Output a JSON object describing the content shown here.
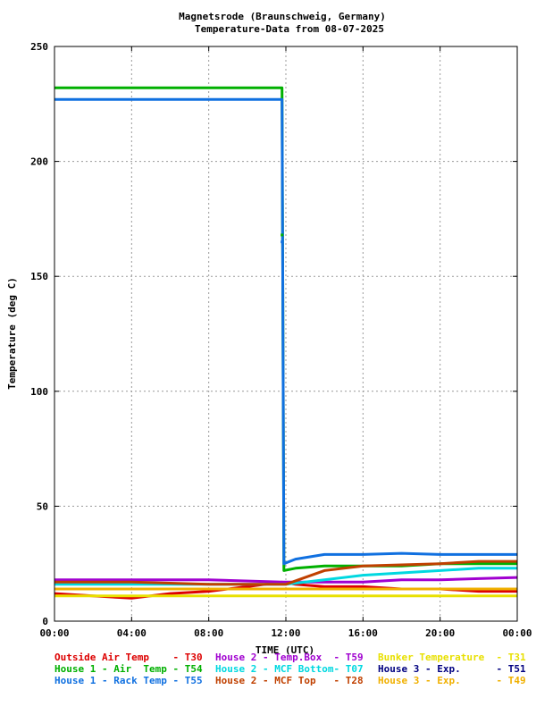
{
  "chart_data": {
    "type": "line",
    "title": "Magnetsrode (Braunschweig, Germany)",
    "subtitle": "Temperature-Data from 08-07-2025",
    "xlabel": "TIME (UTC)",
    "ylabel": "Temperature (deg C)",
    "xlim": [
      0,
      24
    ],
    "ylim": [
      0,
      250
    ],
    "grid": true,
    "xticks": [
      {
        "v": 0,
        "label": "00:00"
      },
      {
        "v": 4,
        "label": "04:00"
      },
      {
        "v": 8,
        "label": "08:00"
      },
      {
        "v": 12,
        "label": "12:00"
      },
      {
        "v": 16,
        "label": "16:00"
      },
      {
        "v": 20,
        "label": "20:00"
      },
      {
        "v": 24,
        "label": "00:00"
      }
    ],
    "yticks": [
      {
        "v": 0,
        "label": "0"
      },
      {
        "v": 50,
        "label": "50"
      },
      {
        "v": 100,
        "label": "100"
      },
      {
        "v": 150,
        "label": "150"
      },
      {
        "v": 200,
        "label": "200"
      },
      {
        "v": 250,
        "label": "250"
      }
    ],
    "series": [
      {
        "name": "Outside Air Temp",
        "code": "T30",
        "color": "#dd0000",
        "x": [
          0,
          2,
          4,
          6,
          8,
          10,
          11.8,
          12.5,
          14,
          16,
          18,
          20,
          22,
          24
        ],
        "y": [
          12,
          11,
          10,
          12,
          13,
          15,
          17,
          16,
          15,
          15,
          14,
          14,
          13,
          13
        ]
      },
      {
        "name": "House 1 - Air  Temp",
        "code": "T54",
        "color": "#00b000",
        "x": [
          0,
          11.8,
          11.9,
          12.5,
          14,
          16,
          18,
          20,
          22,
          24
        ],
        "y": [
          232,
          232,
          22,
          23,
          24,
          24,
          24,
          25,
          25,
          25
        ]
      },
      {
        "name": "House 1 - Rack Temp",
        "code": "T55",
        "color": "#1070e0",
        "x": [
          0,
          11.8,
          11.9,
          12.5,
          14,
          16,
          18,
          20,
          22,
          24
        ],
        "y": [
          227,
          227,
          25,
          27,
          29,
          29,
          29.5,
          29,
          29,
          29
        ]
      },
      {
        "name": "House 2 - Temp.Box",
        "code": "T59",
        "color": "#a000d0",
        "x": [
          0,
          4,
          8,
          11.8,
          12,
          14,
          16,
          18,
          20,
          22,
          24
        ],
        "y": [
          18,
          18,
          18,
          17,
          17,
          17,
          17,
          18,
          18,
          18.5,
          19
        ]
      },
      {
        "name": "House 2 - MCF Bottom",
        "code": "T07",
        "color": "#00d8e0",
        "x": [
          0,
          4,
          8,
          11.8,
          12,
          13,
          14,
          16,
          18,
          20,
          22,
          24
        ],
        "y": [
          16,
          16,
          16,
          16,
          16,
          17,
          18,
          20,
          21,
          22,
          23,
          23
        ]
      },
      {
        "name": "House 2 - MCF Top",
        "code": "T28",
        "color": "#c04000",
        "x": [
          0,
          4,
          8,
          11.8,
          12,
          13,
          14,
          16,
          18,
          20,
          22,
          24
        ],
        "y": [
          17,
          17,
          16,
          16,
          16,
          19,
          22,
          24,
          24.5,
          25,
          26,
          26
        ]
      },
      {
        "name": "Bunker Temperature",
        "code": "T31",
        "color": "#e8e000",
        "x": [
          0,
          12,
          24
        ],
        "y": [
          11,
          11,
          11
        ]
      },
      {
        "name": "House 3 - Exp.",
        "code": "T51",
        "color": "#000080",
        "x": [
          0,
          12,
          24
        ],
        "y": [
          14,
          14,
          14
        ]
      },
      {
        "name": "House 3 - Exp.",
        "code": "T49",
        "color": "#f0b000",
        "x": [
          0,
          12,
          24
        ],
        "y": [
          14,
          14,
          14
        ]
      }
    ],
    "points": [
      {
        "x": 11.8,
        "y": 165,
        "color": "#1070e0"
      },
      {
        "x": 11.8,
        "y": 168,
        "color": "#00b000"
      }
    ]
  },
  "legend_rows": [
    [
      {
        "text": "Outside Air Temp    - T30",
        "color": "#dd0000"
      },
      {
        "text": "House 2 - Temp.Box  - T59",
        "color": "#a000d0"
      },
      {
        "text": "Bunker Temperature  - T31",
        "color": "#e8e000"
      }
    ],
    [
      {
        "text": "House 1 - Air  Temp - T54",
        "color": "#00b000"
      },
      {
        "text": "House 2 - MCF Bottom- T07",
        "color": "#00d8e0"
      },
      {
        "text": "House 3 - Exp.      - T51",
        "color": "#000080"
      }
    ],
    [
      {
        "text": "House 1 - Rack Temp - T55",
        "color": "#1070e0"
      },
      {
        "text": "House 2 - MCF Top   - T28",
        "color": "#c04000"
      },
      {
        "text": "House 3 - Exp.      - T49",
        "color": "#f0b000"
      }
    ]
  ]
}
